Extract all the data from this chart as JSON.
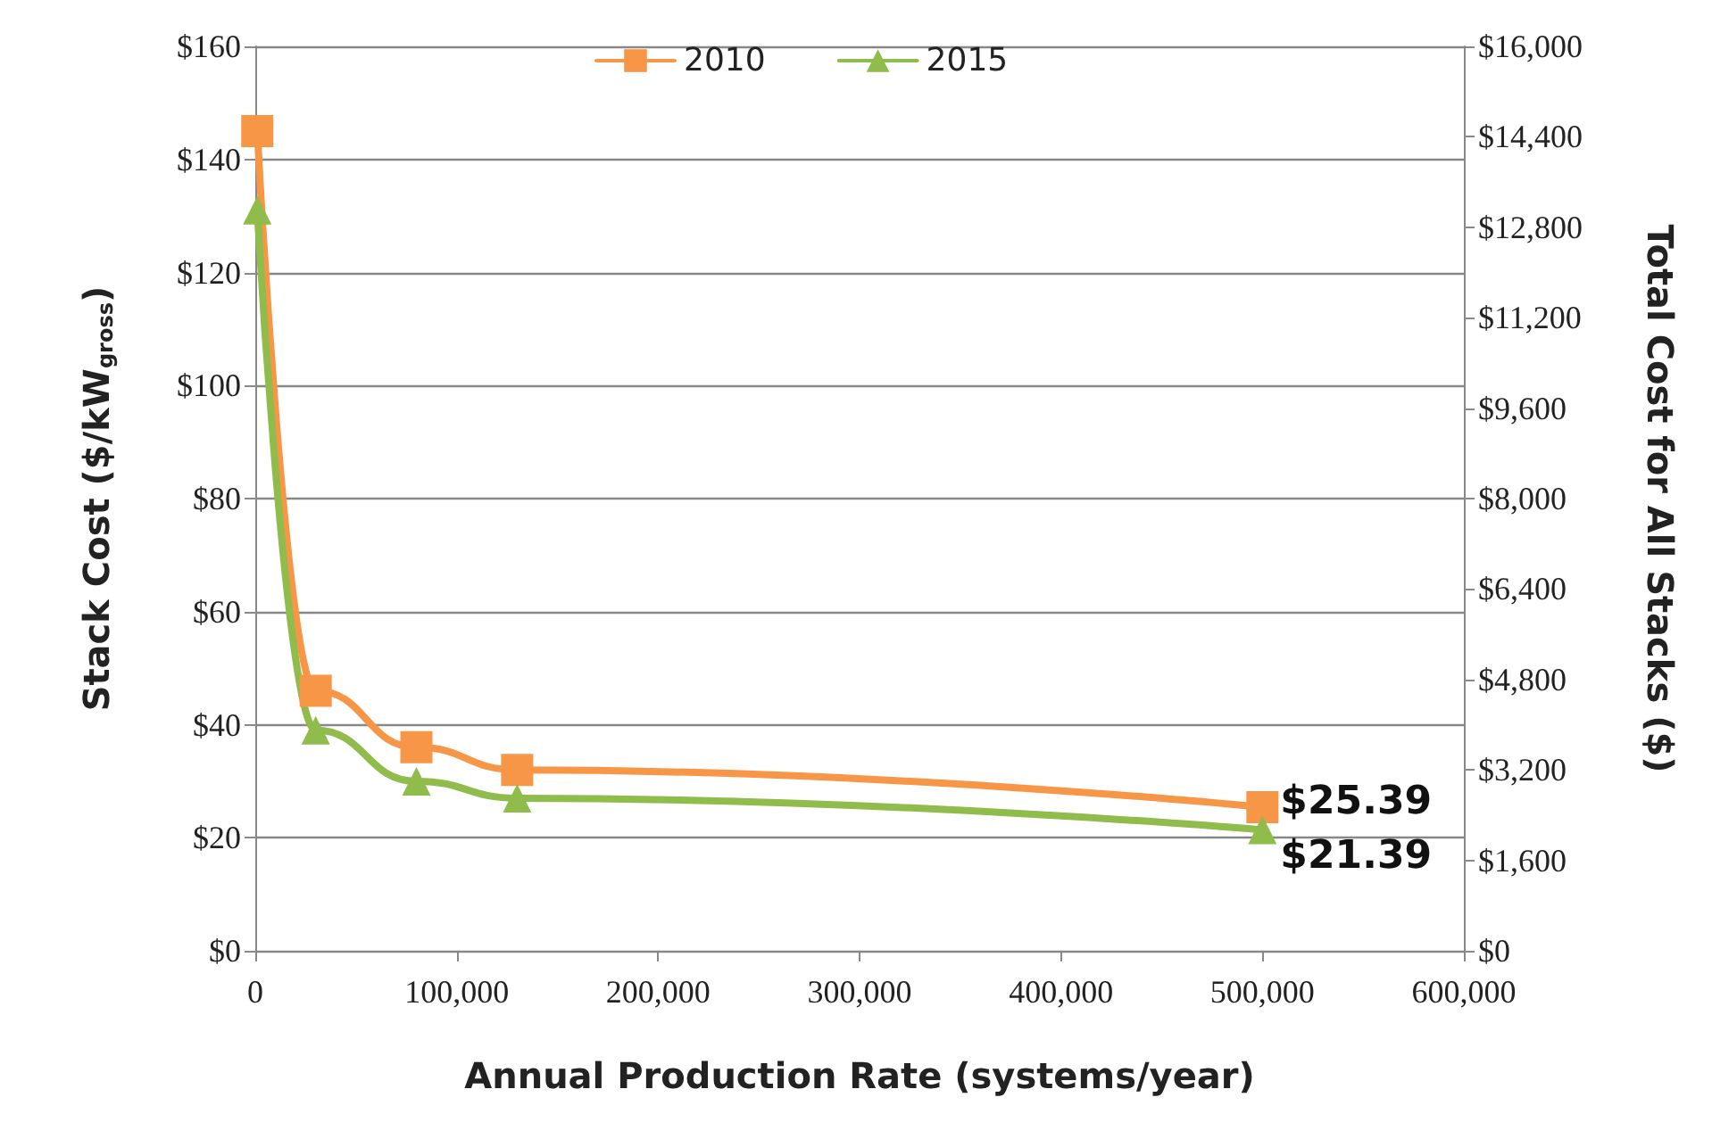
{
  "chart_data": {
    "type": "line",
    "xlabel": "Annual Production Rate (systems/year)",
    "ylabel": "Stack Cost ($/kW$_{gross}$)",
    "y2label": "Total Cost for All Stacks ($)",
    "x": [
      1000,
      30000,
      80000,
      130000,
      500000
    ],
    "series": [
      {
        "name": "2010",
        "color": "#f79646",
        "marker": "square",
        "values": [
          145,
          46,
          36,
          32,
          25.39
        ]
      },
      {
        "name": "2015",
        "color": "#8fbc4a",
        "marker": "triangle",
        "values": [
          131,
          39,
          30,
          27,
          21.39
        ]
      }
    ],
    "xlim": [
      0,
      600000
    ],
    "xticks": [
      0,
      {
        "value": 100000,
        "label": "100,000"
      },
      {
        "value": 200000,
        "label": "200,000"
      },
      {
        "value": 300000,
        "label": "300,000"
      },
      {
        "value": 400000,
        "label": "400,000"
      },
      {
        "value": 500000,
        "label": "500,000"
      },
      {
        "value": 600000,
        "label": "600,000"
      }
    ],
    "ylim": [
      0,
      160
    ],
    "yticks": [
      {
        "value": 0,
        "label": "$0"
      },
      {
        "value": 20,
        "label": "$20"
      },
      {
        "value": 40,
        "label": "$40"
      },
      {
        "value": 60,
        "label": "$60"
      },
      {
        "value": 80,
        "label": "$80"
      },
      {
        "value": 100,
        "label": "$100"
      },
      {
        "value": 120,
        "label": "$120"
      },
      {
        "value": 140,
        "label": "$140"
      },
      {
        "value": 160,
        "label": "$160"
      }
    ],
    "y2lim": [
      0,
      16000
    ],
    "y2ticks": [
      {
        "value": 0,
        "label": "$0"
      },
      {
        "value": 1600,
        "label": "$1,600"
      },
      {
        "value": 3200,
        "label": "$3,200"
      },
      {
        "value": 4800,
        "label": "$4,800"
      },
      {
        "value": 6400,
        "label": "$6,400"
      },
      {
        "value": 8000,
        "label": "$8,000"
      },
      {
        "value": 9600,
        "label": "$9,600"
      },
      {
        "value": 11200,
        "label": "$11,200"
      },
      {
        "value": 12800,
        "label": "$12,800"
      },
      {
        "value": 14400,
        "label": "$14,400"
      },
      {
        "value": 16000,
        "label": "$16,000"
      }
    ],
    "annotations": [
      {
        "text": "$25.39",
        "x": 500000,
        "y": 25.39
      },
      {
        "text": "$21.39",
        "x": 500000,
        "y": 21.39
      }
    ],
    "grid": "y",
    "legend": "top",
    "line_style": "solid"
  }
}
